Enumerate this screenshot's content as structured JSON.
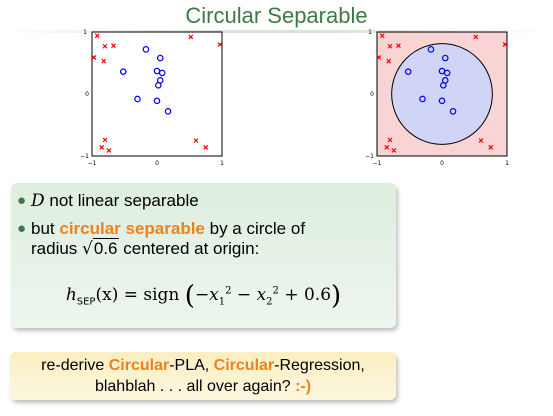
{
  "slide": {
    "title": "Circular Separable"
  },
  "plots": {
    "tick_labels": {
      "x_min": "−1",
      "x_mid": "0",
      "x_max": "1",
      "y_min": "−1",
      "y_mid": "0",
      "y_max": "1"
    },
    "colors": {
      "positive": "#0000ff",
      "negative": "#ff0000",
      "inside_fill": "#d0d4f7",
      "outside_fill": "#f9d4d4"
    }
  },
  "chart_data": [
    {
      "type": "scatter",
      "grid": false,
      "xlim": [
        -1,
        1
      ],
      "ylim": [
        -1,
        1
      ],
      "xticks": [
        -1,
        0,
        1
      ],
      "yticks": [
        -1,
        0,
        1
      ],
      "series": [
        {
          "marker": "o",
          "color": "#0000ff",
          "points": [
            [
              -0.17,
              0.72
            ],
            [
              0.05,
              0.58
            ],
            [
              -0.52,
              0.36
            ],
            [
              0.0,
              0.37
            ],
            [
              0.08,
              0.34
            ],
            [
              0.05,
              0.22
            ],
            [
              0.02,
              0.14
            ],
            [
              -0.3,
              -0.08
            ],
            [
              0.0,
              -0.11
            ],
            [
              0.17,
              -0.28
            ]
          ]
        },
        {
          "marker": "x",
          "color": "#ff0000",
          "points": [
            [
              -0.92,
              0.94
            ],
            [
              -0.8,
              0.77
            ],
            [
              -0.67,
              0.78
            ],
            [
              -0.97,
              0.59
            ],
            [
              -0.82,
              0.53
            ],
            [
              0.52,
              0.92
            ],
            [
              0.97,
              0.8
            ],
            [
              -0.8,
              -0.74
            ],
            [
              -0.85,
              -0.86
            ],
            [
              -0.74,
              -0.91
            ],
            [
              0.6,
              -0.75
            ],
            [
              0.75,
              -0.86
            ]
          ]
        }
      ]
    },
    {
      "type": "scatter",
      "grid": false,
      "xlim": [
        -1,
        1
      ],
      "ylim": [
        -1,
        1
      ],
      "xticks": [
        -1,
        0,
        1
      ],
      "yticks": [
        -1,
        0,
        1
      ],
      "boundary": {
        "shape": "circle",
        "center": [
          0,
          0
        ],
        "radius_squared": 0.6
      },
      "series": [
        {
          "marker": "o",
          "color": "#0000ff",
          "points": [
            [
              -0.17,
              0.72
            ],
            [
              0.05,
              0.58
            ],
            [
              -0.52,
              0.36
            ],
            [
              0.0,
              0.37
            ],
            [
              0.08,
              0.34
            ],
            [
              0.05,
              0.22
            ],
            [
              0.02,
              0.14
            ],
            [
              -0.3,
              -0.08
            ],
            [
              0.0,
              -0.11
            ],
            [
              0.17,
              -0.28
            ]
          ]
        },
        {
          "marker": "x",
          "color": "#ff0000",
          "points": [
            [
              -0.92,
              0.94
            ],
            [
              -0.8,
              0.77
            ],
            [
              -0.67,
              0.78
            ],
            [
              -0.97,
              0.59
            ],
            [
              -0.82,
              0.53
            ],
            [
              0.52,
              0.92
            ],
            [
              0.97,
              0.8
            ],
            [
              -0.8,
              -0.74
            ],
            [
              -0.85,
              -0.86
            ],
            [
              -0.74,
              -0.91
            ],
            [
              0.6,
              -0.75
            ],
            [
              0.75,
              -0.86
            ]
          ]
        }
      ]
    }
  ],
  "statement": {
    "bullet1": {
      "symbol": "D",
      "text": " not linear separable"
    },
    "bullet2": {
      "pre": "but ",
      "highlight": "circular separable",
      "post": " by a circle of",
      "line2_pre": "radius ",
      "sqrt_symbol": "√",
      "radicand": "0.6",
      "line2_post": " centered at origin:"
    },
    "formula": {
      "h": "h",
      "sub": "SEP",
      "arg": "(x) = sign",
      "lparen": "(",
      "body1": "−x",
      "sub1": "1",
      "sup1": "2",
      "minus": " − x",
      "sub2": "2",
      "sup2": "2",
      "body3": " + 0.6",
      "rparen": ")"
    }
  },
  "question": {
    "line1_pre": "re-derive ",
    "hl1": "Circular",
    "mid1": "-PLA, ",
    "hl2": "Circular",
    "mid2": "-Regression,",
    "line2": "blahblah . . . all over again? ",
    "smiley": ":-)"
  }
}
